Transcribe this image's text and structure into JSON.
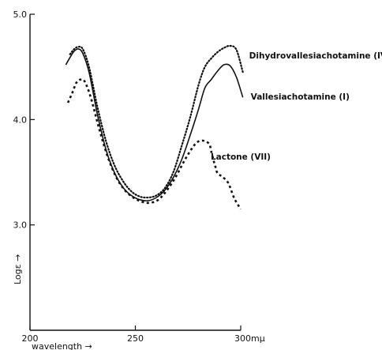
{
  "chart_data": {
    "type": "line",
    "xlabel": "wavelength",
    "ylabel": "Logε",
    "x_ticks": [
      200,
      250,
      300
    ],
    "x_tick_labels": [
      "200",
      "250",
      "300mμ"
    ],
    "y_ticks": [
      3.0,
      4.0,
      5.0
    ],
    "y_tick_labels": [
      "3.0",
      "4.0",
      "5.0"
    ],
    "xlim": [
      200,
      300
    ],
    "ylim": [
      2.0,
      5.0
    ],
    "grid": false,
    "series": [
      {
        "name": "Dihydrovallesiachotamine (IV)",
        "style": "dotted",
        "x": [
          219,
          221,
          223,
          225,
          228,
          232,
          236,
          240,
          244,
          248,
          252,
          256,
          260,
          264,
          268,
          272,
          276,
          280,
          283,
          286,
          289,
          292,
          295,
          298,
          301
        ],
        "y": [
          4.62,
          4.67,
          4.69,
          4.67,
          4.5,
          4.12,
          3.8,
          3.57,
          3.42,
          3.32,
          3.27,
          3.26,
          3.28,
          3.35,
          3.5,
          3.75,
          4.02,
          4.33,
          4.5,
          4.58,
          4.64,
          4.68,
          4.7,
          4.66,
          4.45
        ]
      },
      {
        "name": "Vallesiachotamine (I)",
        "style": "solid",
        "x": [
          217,
          219,
          221,
          223,
          225,
          228,
          232,
          236,
          240,
          244,
          248,
          252,
          256,
          260,
          264,
          268,
          272,
          276,
          280,
          283,
          286,
          289,
          292,
          295,
          298,
          301
        ],
        "y": [
          4.52,
          4.59,
          4.65,
          4.67,
          4.63,
          4.45,
          4.05,
          3.72,
          3.5,
          3.36,
          3.28,
          3.24,
          3.23,
          3.26,
          3.33,
          3.45,
          3.62,
          3.85,
          4.1,
          4.3,
          4.38,
          4.46,
          4.52,
          4.51,
          4.4,
          4.21
        ]
      },
      {
        "name": "Lactone (VII)",
        "style": "dashed",
        "x": [
          218,
          220,
          222,
          224,
          226,
          229,
          233,
          237,
          241,
          245,
          249,
          253,
          257,
          261,
          265,
          269,
          273,
          276,
          279,
          282,
          285,
          286,
          287,
          288,
          289,
          291,
          294,
          297,
          300
        ],
        "y": [
          4.16,
          4.25,
          4.35,
          4.38,
          4.36,
          4.2,
          3.9,
          3.64,
          3.45,
          3.33,
          3.26,
          3.22,
          3.21,
          3.24,
          3.33,
          3.45,
          3.6,
          3.7,
          3.78,
          3.8,
          3.77,
          3.7,
          3.62,
          3.55,
          3.49,
          3.46,
          3.4,
          3.25,
          3.15
        ]
      }
    ]
  }
}
